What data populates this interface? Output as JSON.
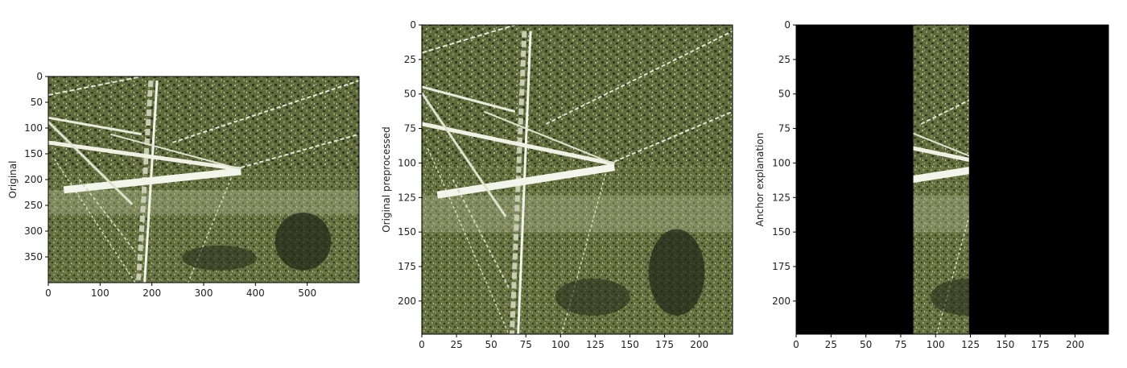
{
  "chart_data": [
    {
      "type": "image",
      "ylabel": "Original",
      "xlim": [
        0,
        600
      ],
      "ylim": [
        400,
        0
      ],
      "xticks": [
        0,
        100,
        200,
        300,
        400,
        500
      ],
      "yticks": [
        0,
        50,
        100,
        150,
        200,
        250,
        300,
        350
      ],
      "colors": {
        "foliage": "#5f6b3a",
        "dark": "#2e3520",
        "light": "#c9ccb3"
      }
    },
    {
      "type": "image",
      "ylabel": "Original preprocessed",
      "xlim": [
        0,
        224
      ],
      "ylim": [
        224,
        0
      ],
      "xticks": [
        0,
        25,
        50,
        75,
        100,
        125,
        150,
        175,
        200
      ],
      "yticks": [
        0,
        25,
        50,
        75,
        100,
        125,
        150,
        175,
        200
      ],
      "colors": {
        "foliage": "#5f6b3a",
        "dark": "#2e3520",
        "light": "#c9ccb3"
      }
    },
    {
      "type": "image",
      "ylabel": "Anchor explanation",
      "xlim": [
        0,
        224
      ],
      "ylim": [
        224,
        0
      ],
      "xticks": [
        0,
        25,
        50,
        75,
        100,
        125,
        150,
        175,
        200
      ],
      "yticks": [
        0,
        25,
        50,
        75,
        100,
        125,
        150,
        175,
        200
      ],
      "visible_segment_x": [
        84,
        124
      ],
      "mask_color": "#000000",
      "colors": {
        "foliage": "#5f6b3a",
        "dark": "#2e3520",
        "light": "#c9ccb3"
      }
    }
  ]
}
